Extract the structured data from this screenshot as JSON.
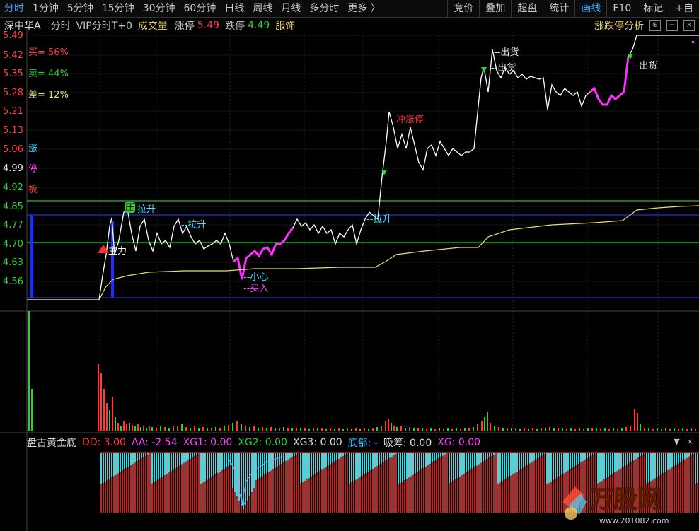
{
  "tabs": [
    "分时",
    "1分钟",
    "5分钟",
    "15分钟",
    "30分钟",
    "60分钟",
    "日线",
    "周线",
    "月线",
    "多分时",
    "更多 〉"
  ],
  "tools": [
    "竞价",
    "叠加",
    "超盘",
    "统计",
    "画线",
    "F10",
    "标记",
    "+自"
  ],
  "info": {
    "name": "深中华A",
    "mode": "分时",
    "vip": "VIP分时T+0",
    "vol_label": "成交量",
    "up_label": "涨停",
    "up_val": "5.49",
    "down_label": "跌停",
    "down_val": "4.49",
    "sector": "服饰"
  },
  "analysis_label": "涨跌停分析",
  "price_axis": [
    "5.49",
    "5.42",
    "5.35",
    "5.28",
    "5.21",
    "5.13",
    "5.06",
    "4.99",
    "4.92",
    "4.85",
    "4.77",
    "4.70",
    "4.63",
    "4.56"
  ],
  "stats": {
    "buy": "买= 56%",
    "sell": "卖= 44%",
    "diff": "差= 12%"
  },
  "side_text": [
    "涨",
    "停",
    "板"
  ],
  "annotations": {
    "zhuli": "主力",
    "ya": "压",
    "lasheng1": "拉升",
    "lasheng2": "--拉升",
    "lasheng3": "--拉升",
    "xiaoxin": "--小心",
    "mairu": "--买入",
    "chongzhangting": "冲涨停",
    "chuhuo1": "--出货",
    "chuhuo2": "--出货",
    "chuhuo3": "--出货"
  },
  "indicator": {
    "title": "盘古黄金底",
    "dd": "DD: 3.00",
    "aa": "AA: -2.54",
    "xg1": "XG1: 0.00",
    "xg2": "XG2: 0.00",
    "xg3": "XG3: 0.00",
    "dibu": "底部: -",
    "xichou": "吸筹: 0.00",
    "xg": "XG: 0.00"
  },
  "watermark": {
    "brand": "万股网",
    "url": "www.201082.com"
  },
  "colors": {
    "up": "#ff3b3b",
    "down": "#30d030",
    "price_line": "#ffffff",
    "avg_line": "#e8e070",
    "magenta": "#ff2fff",
    "cyan": "#40e0e0",
    "blue": "#1a2cff"
  }
}
